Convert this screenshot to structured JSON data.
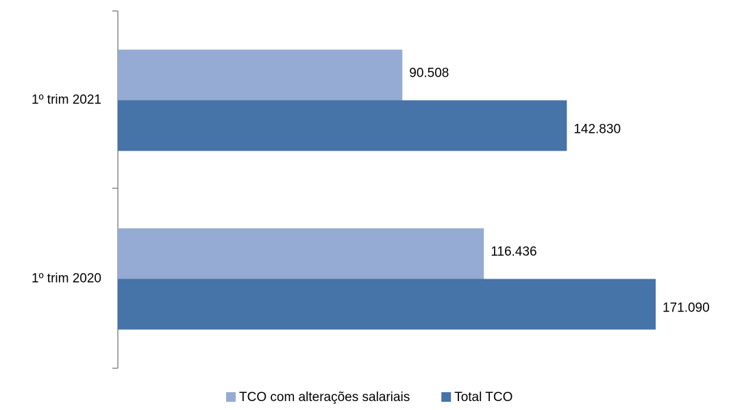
{
  "chart_data": {
    "type": "hbar",
    "categories": [
      "1º trim 2021",
      "1º trim 2020"
    ],
    "series": [
      {
        "name": "TCO com alterações salariais",
        "color": "#95abd3",
        "values": [
          90508,
          116436
        ],
        "value_labels": [
          "90.508",
          "116.436"
        ]
      },
      {
        "name": "Total TCO",
        "color": "#4673a8",
        "values": [
          142830,
          171090
        ],
        "value_labels": [
          "142.830",
          "171.090"
        ]
      }
    ],
    "legend": "bottom"
  }
}
